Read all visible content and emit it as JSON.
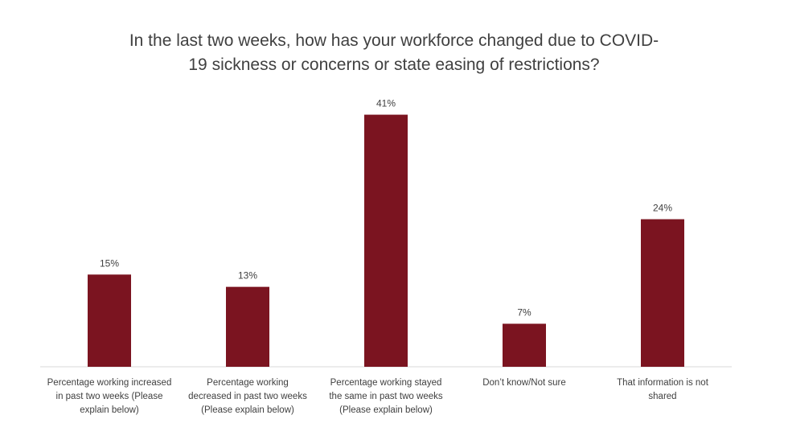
{
  "chart_data": {
    "type": "bar",
    "title": "In the last two weeks, how has your workforce changed due to COVID-19 sickness or concerns or state easing of restrictions?",
    "title_lines": [
      "In the last two weeks, how has your workforce changed due to COVID-",
      "19 sickness or concerns or state easing of restrictions?"
    ],
    "categories": [
      "Percentage working increased in past two weeks (Please explain below)",
      "Percentage working decreased in past two weeks (Please explain below)",
      "Percentage working stayed the same in past two weeks (Please explain below)",
      "Don’t know/Not sure",
      "That information is not shared"
    ],
    "category_lines": [
      [
        "Percentage working increased",
        "in past two weeks (Please",
        "explain below)"
      ],
      [
        "Percentage working",
        "decreased in past two weeks",
        "(Please explain below)"
      ],
      [
        "Percentage working stayed",
        "the same in past two weeks",
        "(Please explain below)"
      ],
      [
        "Don’t know/Not sure"
      ],
      [
        "That information is not",
        "shared"
      ]
    ],
    "values": [
      15,
      13,
      41,
      7,
      24
    ],
    "value_labels": [
      "15%",
      "13%",
      "41%",
      "7%",
      "24%"
    ],
    "unit": "%",
    "ylim": [
      0,
      45
    ],
    "grid": false,
    "legend": "none",
    "colors": {
      "bar": "#7b1420",
      "axis": "#d9d9d9",
      "text": "#404040"
    }
  }
}
